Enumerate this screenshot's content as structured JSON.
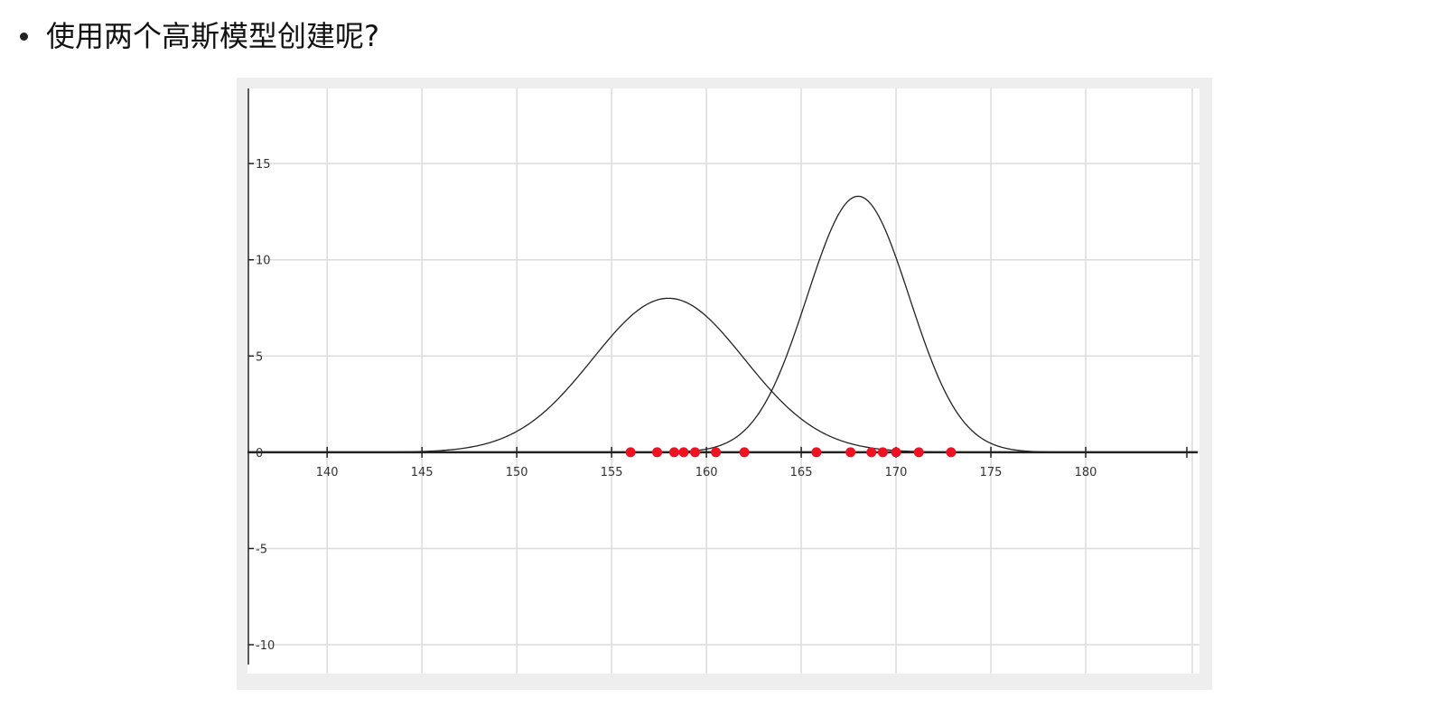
{
  "heading": {
    "bullet_text": "使用两个高斯模型创建呢?"
  },
  "chart_data": {
    "type": "line",
    "title": "",
    "xlabel": "",
    "ylabel": "",
    "xlim": [
      135.8,
      186.0
    ],
    "ylim": [
      -11.5,
      18.9
    ],
    "grid": true,
    "x_ticks": [
      140,
      145,
      150,
      155,
      160,
      165,
      170,
      175,
      180
    ],
    "y_ticks": [
      -10,
      -5,
      0,
      5,
      10,
      15
    ],
    "x_tick_labels": [
      "140",
      "145",
      "150",
      "155",
      "160",
      "165",
      "170",
      "175",
      "180"
    ],
    "y_tick_labels": [
      "-10",
      "-5",
      "0",
      "5",
      "10",
      "15"
    ],
    "series": [
      {
        "type": "gaussian",
        "mean": 158.0,
        "std": 4.0,
        "peak": 8.0,
        "color": "#222222"
      },
      {
        "type": "gaussian",
        "mean": 168.0,
        "std": 2.7,
        "peak": 13.3,
        "color": "#222222"
      }
    ],
    "points": {
      "color": "#ee1122",
      "y": 0,
      "x": [
        156.0,
        157.4,
        158.3,
        158.8,
        159.4,
        160.5,
        162.0,
        165.8,
        167.6,
        168.7,
        169.3,
        170.0,
        171.2,
        172.9
      ]
    }
  }
}
